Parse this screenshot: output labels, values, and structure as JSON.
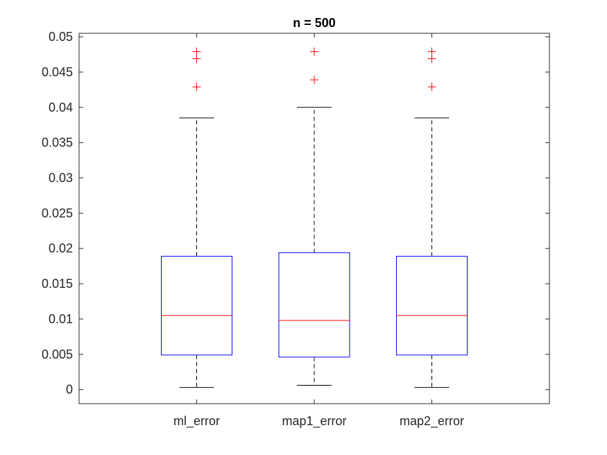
{
  "chart_data": {
    "type": "box",
    "title": "n = 500",
    "xlabel": "",
    "ylabel": "",
    "ylim": [
      -0.002,
      0.0505
    ],
    "yticks": [
      0,
      0.005,
      0.01,
      0.015,
      0.02,
      0.025,
      0.03,
      0.035,
      0.04,
      0.045,
      0.05
    ],
    "ytick_labels": [
      "0",
      "0.005",
      "0.01",
      "0.015",
      "0.02",
      "0.025",
      "0.03",
      "0.035",
      "0.04",
      "0.045",
      "0.05"
    ],
    "categories": [
      "ml_error",
      "map1_error",
      "map2_error"
    ],
    "boxes": [
      {
        "name": "ml_error",
        "whisker_low": 0.0003,
        "q1": 0.0049,
        "median": 0.0105,
        "q3": 0.0189,
        "whisker_high": 0.0385,
        "outliers": [
          0.0429,
          0.0469,
          0.0479
        ]
      },
      {
        "name": "map1_error",
        "whisker_low": 0.0006,
        "q1": 0.0046,
        "median": 0.0098,
        "q3": 0.0194,
        "whisker_high": 0.04,
        "outliers": [
          0.0439,
          0.0479
        ]
      },
      {
        "name": "map2_error",
        "whisker_low": 0.0003,
        "q1": 0.0049,
        "median": 0.0105,
        "q3": 0.0189,
        "whisker_high": 0.0385,
        "outliers": [
          0.0429,
          0.0469,
          0.0479
        ]
      }
    ],
    "grid": false,
    "colors": {
      "box": "#0000ff",
      "median": "#ff0000",
      "outlier": "#ff0000",
      "whisker": "#000000",
      "axis": "#262626"
    }
  }
}
